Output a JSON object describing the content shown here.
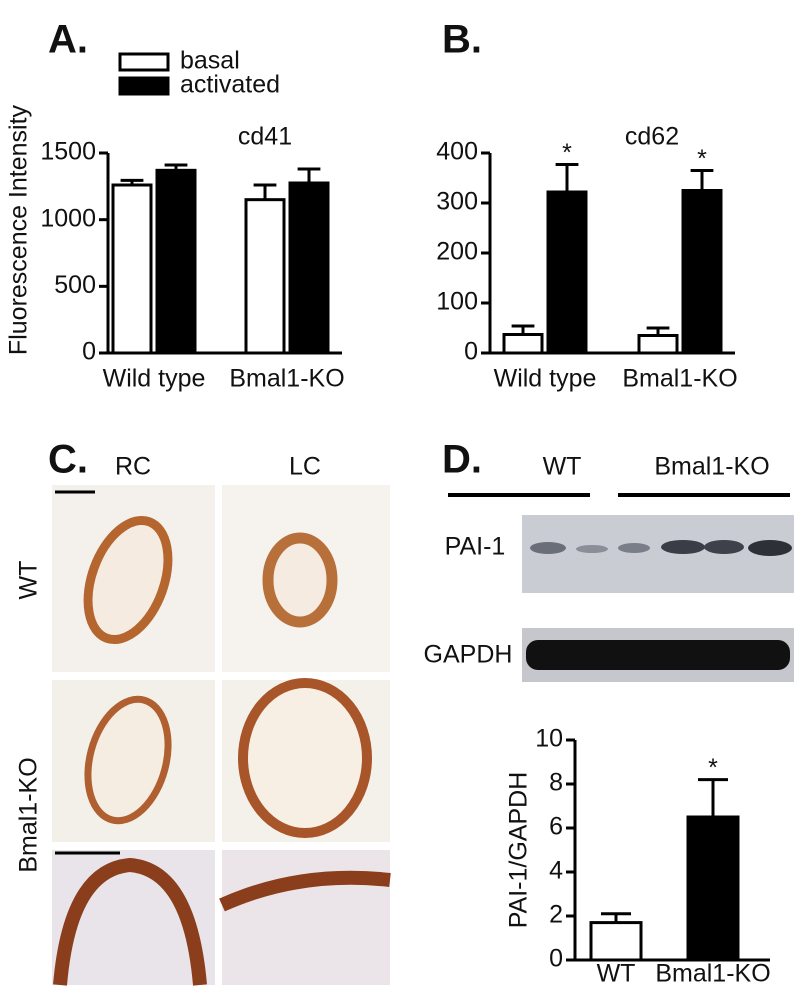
{
  "panel_labels": [
    "A.",
    "B.",
    "C.",
    "D."
  ],
  "histology": {
    "columns": [
      "RC",
      "LC"
    ],
    "rows": [
      "WT",
      "Bmal1-KO"
    ]
  },
  "blot": {
    "groups": [
      "WT",
      "Bmal1-KO"
    ],
    "proteins": [
      "PAI-1",
      "GAPDH"
    ]
  },
  "chart_data": [
    {
      "type": "bar",
      "title": "cd41",
      "y_label": "Fluorescence Intensity",
      "categories": [
        "Wild type",
        "Bmal1-KO"
      ],
      "series": [
        {
          "name": "basal",
          "color": "#ffffff",
          "values": [
            1260,
            1150
          ],
          "errors": [
            35,
            110
          ]
        },
        {
          "name": "activated",
          "color": "#000000",
          "values": [
            1370,
            1275
          ],
          "errors": [
            40,
            105
          ]
        }
      ],
      "ylim": [
        0,
        1500
      ],
      "yticks": [
        0,
        500,
        1000,
        1500
      ],
      "legend": "top-left"
    },
    {
      "type": "bar",
      "title": "cd62",
      "categories": [
        "Wild type",
        "Bmal1-KO"
      ],
      "series": [
        {
          "color": "#ffffff",
          "values": [
            37,
            35
          ],
          "errors": [
            17,
            15
          ]
        },
        {
          "color": "#000000",
          "values": [
            322,
            325
          ],
          "errors": [
            55,
            40
          ]
        }
      ],
      "ylim": [
        0,
        400
      ],
      "yticks": [
        0,
        100,
        200,
        300,
        400
      ],
      "annotations": [
        {
          "text": "*",
          "series": 1,
          "category": 0
        },
        {
          "text": "*",
          "series": 1,
          "category": 1
        }
      ]
    },
    {
      "type": "bar",
      "y_label": "PAI-1/GAPDH",
      "categories": [
        "WT",
        "Bmal1-KO"
      ],
      "series": [
        {
          "colors": [
            "#ffffff",
            "#000000"
          ],
          "values": [
            1.7,
            6.5
          ],
          "errors": [
            0.4,
            1.7
          ]
        }
      ],
      "ylim": [
        0,
        10
      ],
      "yticks": [
        0,
        2,
        4,
        6,
        8,
        10
      ],
      "annotations": [
        {
          "text": "*",
          "series": 0,
          "category": 1
        }
      ]
    }
  ]
}
